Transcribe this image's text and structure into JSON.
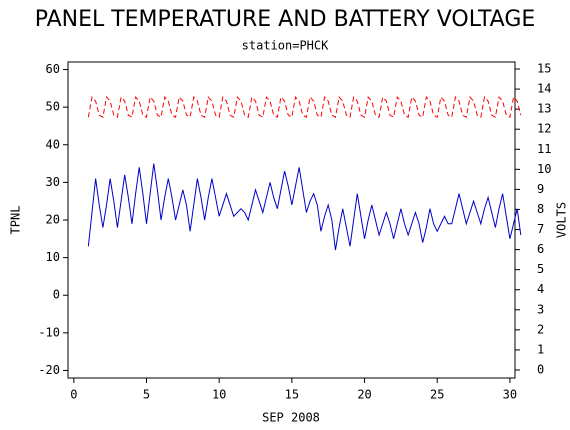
{
  "chart_data": {
    "type": "line",
    "title": "PANEL TEMPERATURE AND BATTERY VOLTAGE",
    "subtitle": "station=PHCK",
    "x_label": "SEP 2008",
    "y_label": "TPNL",
    "y2_label": "VOLTS",
    "xlim": [
      -0.4,
      30.35
    ],
    "xticks": [
      0,
      5,
      10,
      15,
      20,
      25,
      30
    ],
    "ylim": [
      -22,
      62
    ],
    "yticks": [
      -20,
      -10,
      0,
      10,
      20,
      30,
      40,
      50,
      60
    ],
    "y2lim": [
      -0.4,
      15.35
    ],
    "y2ticks": [
      0,
      1,
      2,
      3,
      4,
      5,
      6,
      7,
      8,
      9,
      10,
      11,
      12,
      13,
      14,
      15
    ],
    "x": [
      1,
      1.25,
      1.5,
      1.75,
      2,
      2.25,
      2.5,
      2.75,
      3,
      3.25,
      3.5,
      3.75,
      4,
      4.25,
      4.5,
      4.75,
      5,
      5.25,
      5.5,
      5.75,
      6,
      6.25,
      6.5,
      6.75,
      7,
      7.25,
      7.5,
      7.75,
      8,
      8.25,
      8.5,
      8.75,
      9,
      9.25,
      9.5,
      9.75,
      10,
      10.25,
      10.5,
      10.75,
      11,
      11.25,
      11.5,
      11.75,
      12,
      12.25,
      12.5,
      12.75,
      13,
      13.25,
      13.5,
      13.75,
      14,
      14.25,
      14.5,
      14.75,
      15,
      15.25,
      15.5,
      15.75,
      16,
      16.25,
      16.5,
      16.75,
      17,
      17.25,
      17.5,
      17.75,
      18,
      18.25,
      18.5,
      18.75,
      19,
      19.25,
      19.5,
      19.75,
      20,
      20.25,
      20.5,
      20.75,
      21,
      21.25,
      21.5,
      21.75,
      22,
      22.25,
      22.5,
      22.75,
      23,
      23.25,
      23.5,
      23.75,
      24,
      24.25,
      24.5,
      24.75,
      25,
      25.25,
      25.5,
      25.75,
      26,
      26.25,
      26.5,
      26.75,
      27,
      27.25,
      27.5,
      27.75,
      28,
      28.25,
      28.5,
      28.75,
      29,
      29.25,
      29.5,
      29.75,
      30,
      30.25,
      30.5,
      30.75
    ],
    "series": [
      {
        "name": "TPNL",
        "color": "#0000cc",
        "dashed": false,
        "values": [
          13,
          22,
          31,
          24,
          18,
          24,
          31,
          25,
          18,
          25,
          32,
          26,
          19,
          27,
          34,
          27,
          19,
          27,
          35,
          28,
          20,
          26,
          31,
          26,
          20,
          24,
          28,
          24,
          17,
          24,
          31,
          26,
          20,
          26,
          31,
          26,
          21,
          24,
          27,
          24,
          21,
          22,
          23,
          22,
          20,
          24,
          28,
          25,
          22,
          26,
          30,
          26,
          23,
          28,
          33,
          29,
          24,
          29,
          34,
          28,
          22,
          25,
          27,
          24,
          17,
          21,
          24,
          20,
          12,
          18,
          23,
          18,
          13,
          20,
          27,
          21,
          15,
          20,
          24,
          20,
          16,
          19,
          22,
          19,
          15,
          19,
          23,
          19,
          16,
          19,
          22,
          19,
          14,
          18,
          23,
          19,
          17,
          19,
          21,
          19,
          19,
          23,
          27,
          23,
          19,
          22,
          25,
          22,
          19,
          23,
          26,
          22,
          18,
          23,
          27,
          21,
          15,
          19,
          23,
          16
        ]
      },
      {
        "name": "VOLTS",
        "color": "#ff0000",
        "dashed": true,
        "axis": "y2",
        "values": [
          12.6,
          13.6,
          13.4,
          12.7,
          12.6,
          13.6,
          13.4,
          12.7,
          12.6,
          13.6,
          13.4,
          12.7,
          12.6,
          13.6,
          13.4,
          12.7,
          12.6,
          13.6,
          13.4,
          12.7,
          12.6,
          13.6,
          13.4,
          12.7,
          12.6,
          13.6,
          13.4,
          12.7,
          12.6,
          13.6,
          13.4,
          12.7,
          12.6,
          13.6,
          13.4,
          12.7,
          12.6,
          13.6,
          13.4,
          12.7,
          12.6,
          13.6,
          13.4,
          12.7,
          12.6,
          13.6,
          13.4,
          12.7,
          12.6,
          13.6,
          13.4,
          12.7,
          12.6,
          13.6,
          13.4,
          12.7,
          12.6,
          13.6,
          13.4,
          12.7,
          12.6,
          13.6,
          13.4,
          12.7,
          12.6,
          13.6,
          13.4,
          12.7,
          12.6,
          13.6,
          13.4,
          12.7,
          12.6,
          13.6,
          13.4,
          12.7,
          12.6,
          13.6,
          13.4,
          12.7,
          12.6,
          13.6,
          13.4,
          12.7,
          12.6,
          13.6,
          13.4,
          12.7,
          12.6,
          13.6,
          13.4,
          12.7,
          12.6,
          13.6,
          13.4,
          12.7,
          12.6,
          13.6,
          13.4,
          12.7,
          12.6,
          13.6,
          13.4,
          12.7,
          12.6,
          13.6,
          13.4,
          12.7,
          12.6,
          13.6,
          13.4,
          12.7,
          12.6,
          13.6,
          13.4,
          12.7,
          12.6,
          13.6,
          13.4,
          12.7
        ]
      }
    ]
  }
}
